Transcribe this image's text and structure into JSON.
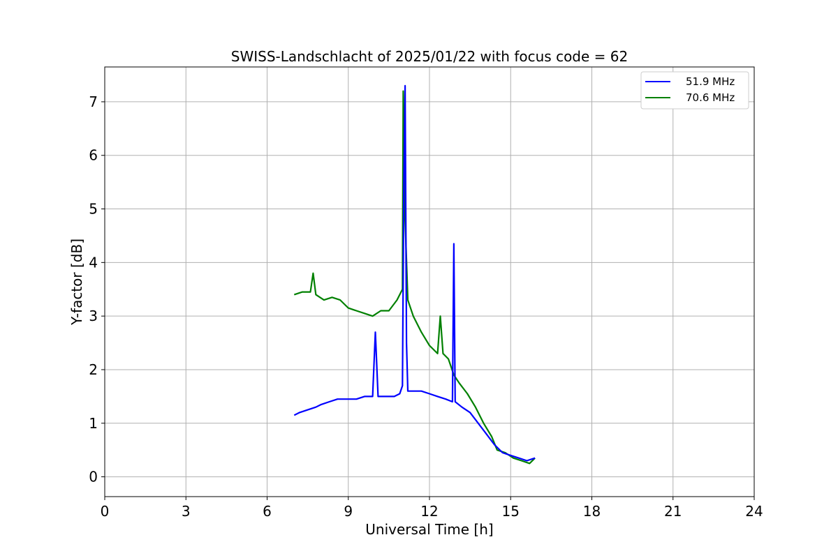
{
  "chart_data": {
    "type": "line",
    "title": "SWISS-Landschlacht of 2025/01/22 with focus code = 62",
    "xlabel": "Universal Time [h]",
    "ylabel": "Y-factor [dB]",
    "xlim": [
      0,
      24
    ],
    "ylim": [
      -0.37,
      7.65
    ],
    "xticks": [
      "0",
      "3",
      "6",
      "9",
      "12",
      "15",
      "18",
      "21",
      "24"
    ],
    "yticks": [
      "0",
      "1",
      "2",
      "3",
      "4",
      "5",
      "6",
      "7"
    ],
    "grid": true,
    "legend_position": "top-right",
    "series": [
      {
        "name": "51.9 MHz",
        "color": "#0000ff",
        "x": [
          7.0,
          7.2,
          7.5,
          7.8,
          8.0,
          8.3,
          8.6,
          9.0,
          9.3,
          9.6,
          9.9,
          10.0,
          10.1,
          10.4,
          10.7,
          10.9,
          11.0,
          11.05,
          11.1,
          11.15,
          11.2,
          11.4,
          11.7,
          12.0,
          12.3,
          12.6,
          12.85,
          12.9,
          12.95,
          13.2,
          13.5,
          13.8,
          14.1,
          14.4,
          14.7,
          15.0,
          15.3,
          15.6,
          15.9
        ],
        "y": [
          1.15,
          1.2,
          1.25,
          1.3,
          1.35,
          1.4,
          1.45,
          1.45,
          1.45,
          1.5,
          1.5,
          2.7,
          1.5,
          1.5,
          1.5,
          1.55,
          1.7,
          5.3,
          7.3,
          2.5,
          1.6,
          1.6,
          1.6,
          1.55,
          1.5,
          1.45,
          1.4,
          4.35,
          1.4,
          1.3,
          1.2,
          1.0,
          0.8,
          0.6,
          0.45,
          0.4,
          0.35,
          0.3,
          0.35
        ]
      },
      {
        "name": "70.6 MHz",
        "color": "#008000",
        "x": [
          7.0,
          7.3,
          7.6,
          7.7,
          7.8,
          8.1,
          8.4,
          8.7,
          9.0,
          9.3,
          9.6,
          9.9,
          10.2,
          10.5,
          10.8,
          11.0,
          11.03,
          11.1,
          11.2,
          11.4,
          11.7,
          12.0,
          12.3,
          12.4,
          12.5,
          12.7,
          12.9,
          13.1,
          13.4,
          13.7,
          14.0,
          14.3,
          14.5,
          14.8,
          15.1,
          15.4,
          15.7,
          15.9
        ],
        "y": [
          3.4,
          3.45,
          3.45,
          3.8,
          3.4,
          3.3,
          3.35,
          3.3,
          3.15,
          3.1,
          3.05,
          3.0,
          3.1,
          3.1,
          3.3,
          3.5,
          7.2,
          4.8,
          3.3,
          3.0,
          2.7,
          2.45,
          2.3,
          3.0,
          2.3,
          2.2,
          1.9,
          1.75,
          1.55,
          1.3,
          1.0,
          0.75,
          0.5,
          0.45,
          0.35,
          0.3,
          0.25,
          0.35
        ]
      }
    ]
  }
}
